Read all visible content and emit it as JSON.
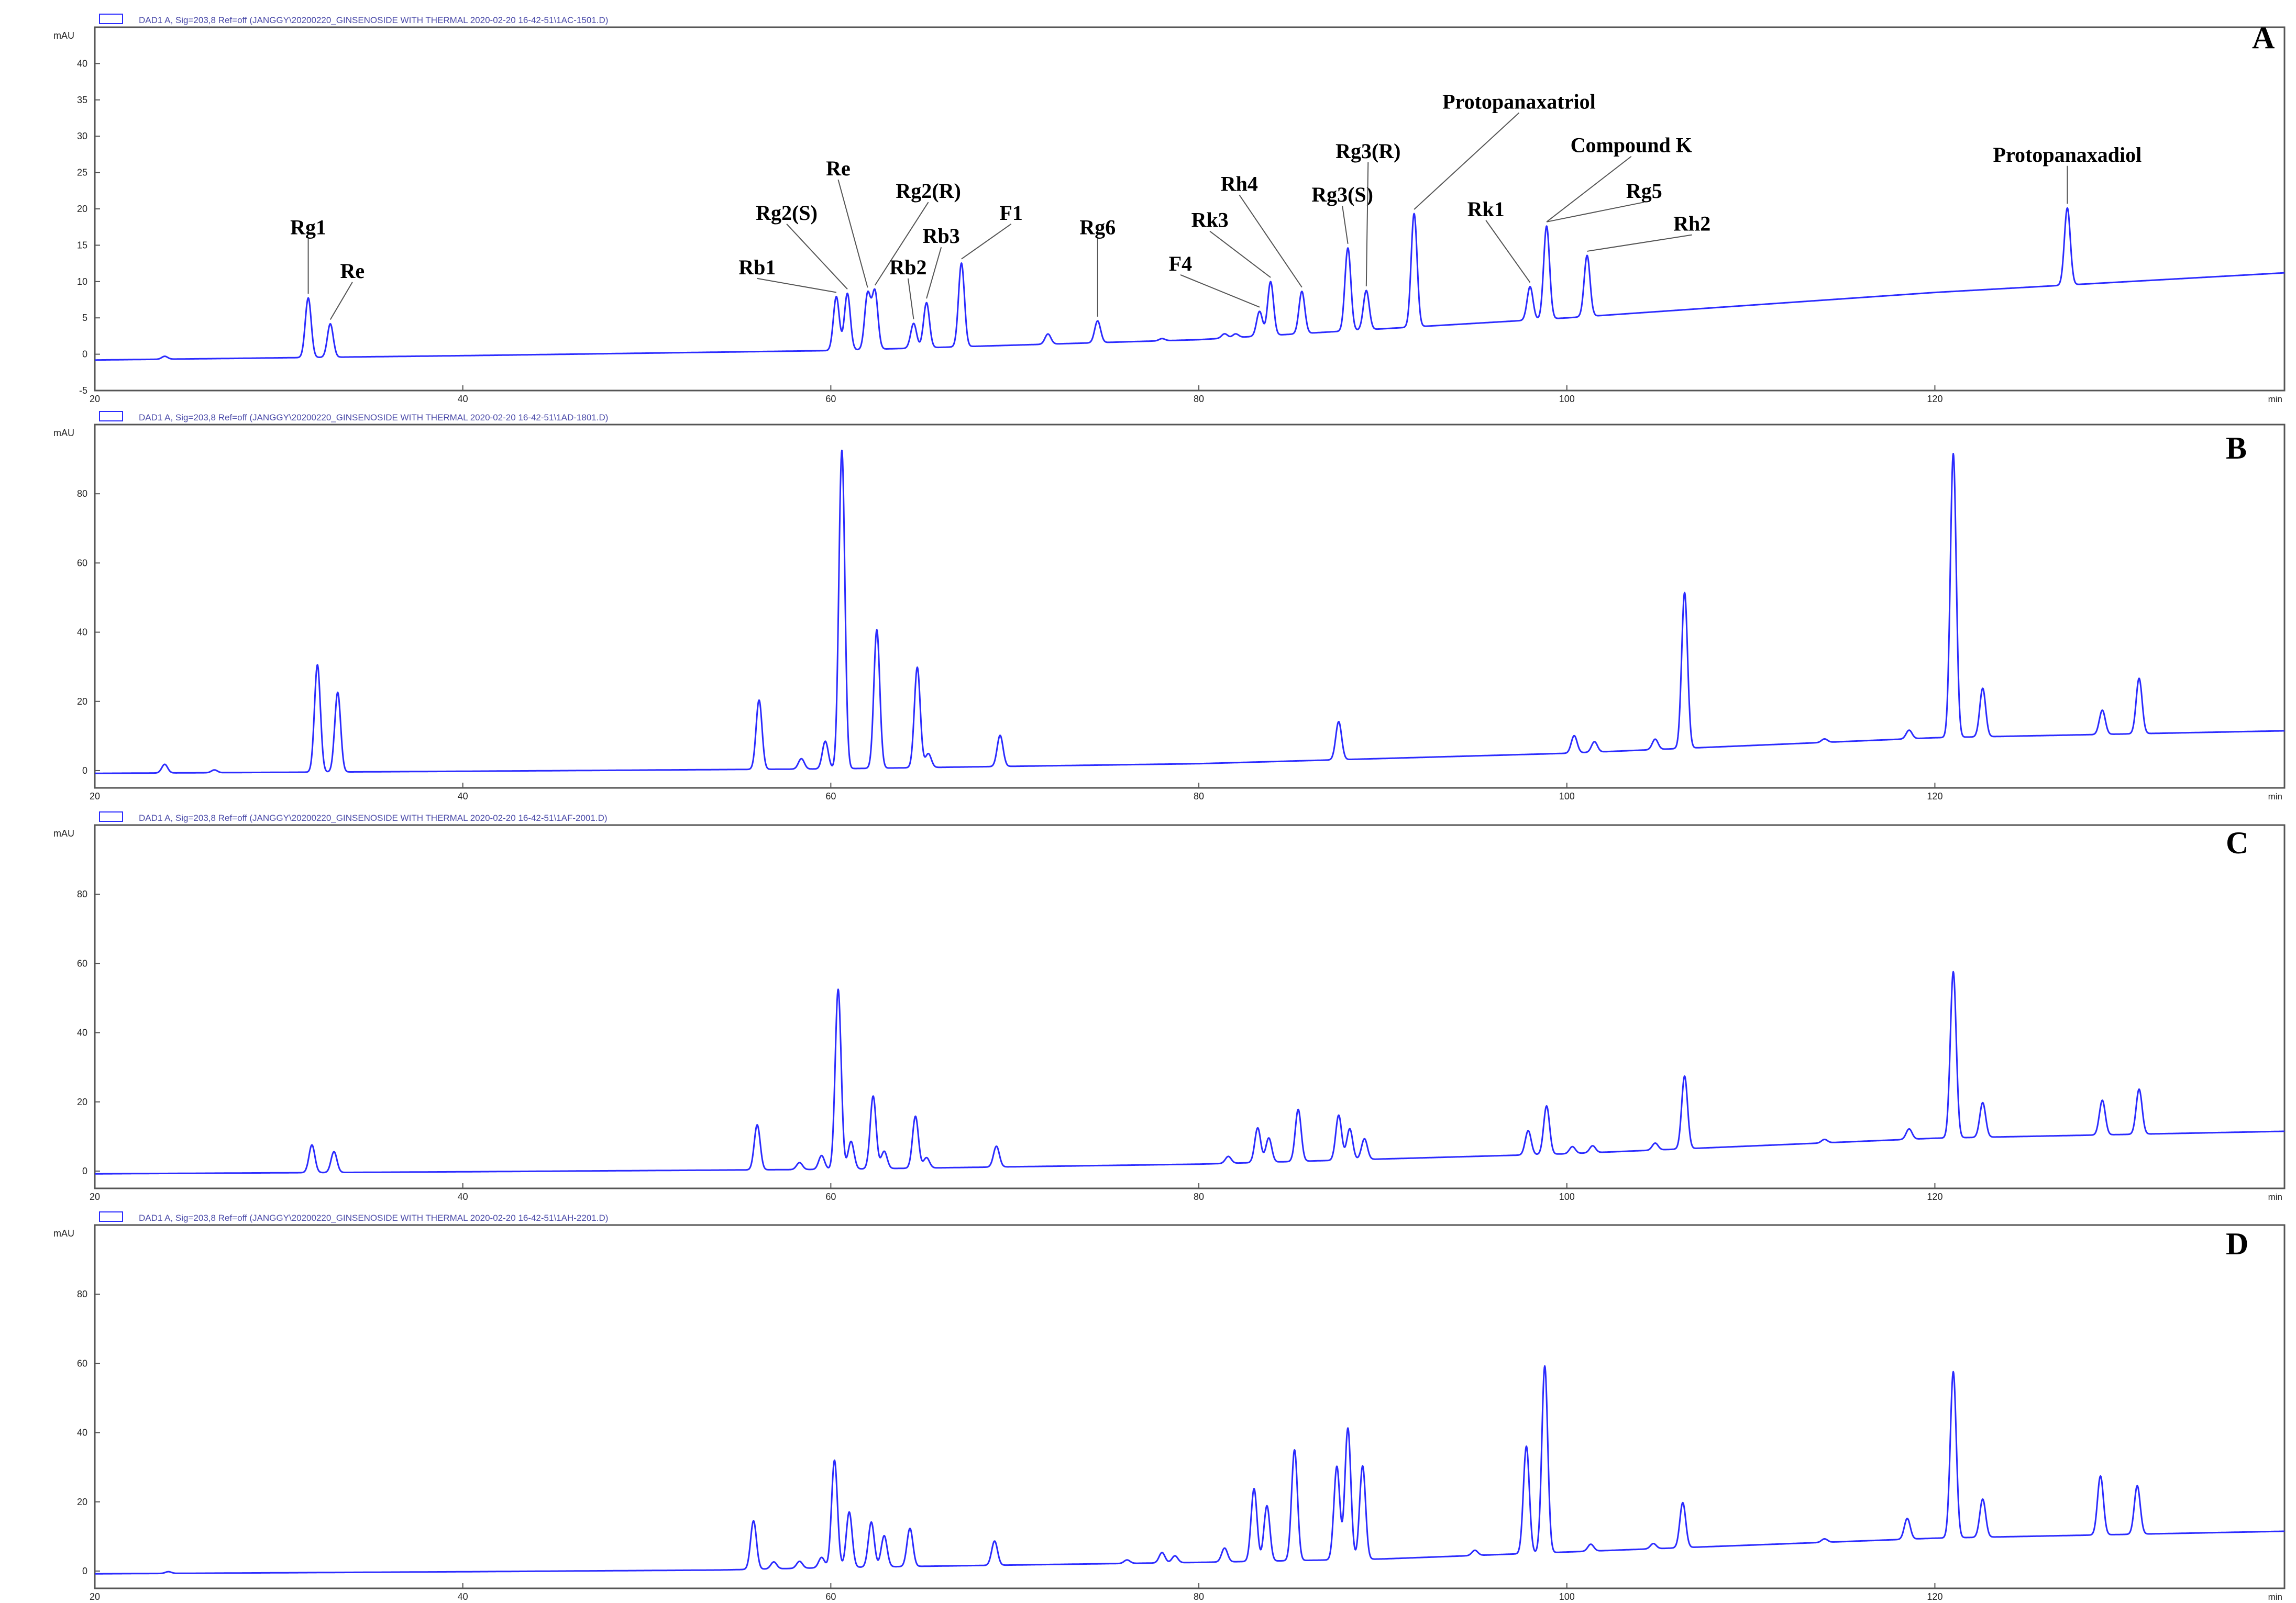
{
  "colors": {
    "trace": "#2b2bff",
    "frame": "#555555",
    "legend_text": "#4a4aa8",
    "label_line": "#555555"
  },
  "x_axis": {
    "min": 20,
    "max": 139,
    "ticks": [
      20,
      40,
      60,
      80,
      100,
      120
    ],
    "unit": "min"
  },
  "chart_data": [
    {
      "type": "line",
      "panel": "A",
      "header": "DAD1 A, Sig=203,8 Ref=off (JANGGY\\20200220_GINSENOSIDE WITH THERMAL 2020-02-20 16-42-51\\1AC-1501.D)",
      "ylabel": "mAU",
      "ylim": [
        -5,
        45
      ],
      "yticks": [
        -5,
        0,
        5,
        10,
        15,
        20,
        25,
        30,
        35,
        40
      ],
      "baseline": [
        [
          20,
          -0.8
        ],
        [
          40,
          -0.2
        ],
        [
          60,
          0.5
        ],
        [
          80,
          2.0
        ],
        [
          90,
          3.5
        ],
        [
          100,
          5.0
        ],
        [
          120,
          8.5
        ],
        [
          139,
          11.2
        ]
      ],
      "peaks": [
        {
          "x": 23.8,
          "h": 0.4
        },
        {
          "x": 31.6,
          "h": 8.2
        },
        {
          "x": 32.8,
          "h": 4.6
        },
        {
          "x": 60.3,
          "h": 7.4
        },
        {
          "x": 60.9,
          "h": 7.8
        },
        {
          "x": 62.0,
          "h": 7.6
        },
        {
          "x": 62.4,
          "h": 7.9
        },
        {
          "x": 64.5,
          "h": 3.4
        },
        {
          "x": 65.2,
          "h": 6.2
        },
        {
          "x": 67.1,
          "h": 11.5
        },
        {
          "x": 71.8,
          "h": 1.4
        },
        {
          "x": 74.5,
          "h": 3.0
        },
        {
          "x": 78.0,
          "h": 0.3
        },
        {
          "x": 81.4,
          "h": 0.6
        },
        {
          "x": 82.0,
          "h": 0.5
        },
        {
          "x": 83.3,
          "h": 3.4
        },
        {
          "x": 83.9,
          "h": 7.4
        },
        {
          "x": 85.6,
          "h": 5.8
        },
        {
          "x": 88.1,
          "h": 11.4
        },
        {
          "x": 89.1,
          "h": 5.4
        },
        {
          "x": 91.7,
          "h": 15.6
        },
        {
          "x": 98.0,
          "h": 4.6
        },
        {
          "x": 98.9,
          "h": 12.8
        },
        {
          "x": 101.1,
          "h": 8.4
        },
        {
          "x": 127.2,
          "h": 10.6
        }
      ],
      "labels": [
        {
          "text": "Rg1",
          "x": 31.6,
          "tx": 31.6,
          "ty": 16.5
        },
        {
          "text": "Re",
          "x": 32.8,
          "tx": 34.0,
          "ty": 10.5
        },
        {
          "text": "Rb1",
          "x": 60.3,
          "tx": 56.0,
          "ty": 11.0
        },
        {
          "text": "Rg2(S)",
          "x": 60.9,
          "tx": 57.6,
          "ty": 18.5
        },
        {
          "text": "Re",
          "x": 62.0,
          "tx": 60.4,
          "ty": 24.6
        },
        {
          "text": "Rg2(R)",
          "x": 62.4,
          "tx": 65.3,
          "ty": 21.5
        },
        {
          "text": "Rb2",
          "x": 64.5,
          "tx": 64.2,
          "ty": 11.0
        },
        {
          "text": "Rb3",
          "x": 65.2,
          "tx": 66.0,
          "ty": 15.3
        },
        {
          "text": "F1",
          "x": 67.1,
          "tx": 69.8,
          "ty": 18.5
        },
        {
          "text": "Rg6",
          "x": 74.5,
          "tx": 74.5,
          "ty": 16.5
        },
        {
          "text": "F4",
          "x": 83.3,
          "tx": 79.0,
          "ty": 11.5
        },
        {
          "text": "Rk3",
          "x": 83.9,
          "tx": 80.6,
          "ty": 17.5
        },
        {
          "text": "Rh4",
          "x": 85.6,
          "tx": 82.2,
          "ty": 22.5
        },
        {
          "text": "Rg3(S)",
          "x": 88.1,
          "tx": 87.8,
          "ty": 21.0
        },
        {
          "text": "Rg3(R)",
          "x": 89.1,
          "tx": 89.2,
          "ty": 27.0
        },
        {
          "text": "Protopanaxatriol",
          "x": 91.7,
          "tx": 97.4,
          "ty": 33.8
        },
        {
          "text": "Compound K",
          "x": 98.9,
          "tx": 103.5,
          "ty": 27.8
        },
        {
          "text": "Rk1",
          "x": 98.0,
          "tx": 95.6,
          "ty": 19.0
        },
        {
          "text": "Rg5",
          "x": 98.9,
          "tx": 104.2,
          "ty": 21.5
        },
        {
          "text": "Rh2",
          "x": 101.1,
          "tx": 106.8,
          "ty": 17.0
        },
        {
          "text": "Protopanaxadiol",
          "x": 127.2,
          "tx": 127.2,
          "ty": 26.5
        }
      ]
    },
    {
      "type": "line",
      "panel": "B",
      "header": "DAD1 A, Sig=203,8 Ref=off (JANGGY\\20200220_GINSENOSIDE WITH THERMAL 2020-02-20 16-42-51\\1AD-1801.D)",
      "ylabel": "mAU",
      "ylim": [
        -5,
        100
      ],
      "yticks": [
        0,
        20,
        40,
        60,
        80
      ],
      "baseline": [
        [
          20,
          -0.8
        ],
        [
          40,
          -0.2
        ],
        [
          60,
          0.5
        ],
        [
          80,
          2.0
        ],
        [
          100,
          5.0
        ],
        [
          120,
          9.5
        ],
        [
          139,
          11.5
        ]
      ],
      "peaks": [
        {
          "x": 23.8,
          "h": 2.5
        },
        {
          "x": 26.5,
          "h": 0.8
        },
        {
          "x": 32.1,
          "h": 31
        },
        {
          "x": 33.2,
          "h": 23
        },
        {
          "x": 56.1,
          "h": 20
        },
        {
          "x": 58.4,
          "h": 3
        },
        {
          "x": 59.7,
          "h": 8
        },
        {
          "x": 60.6,
          "h": 92
        },
        {
          "x": 62.5,
          "h": 40
        },
        {
          "x": 64.7,
          "h": 29
        },
        {
          "x": 65.3,
          "h": 4
        },
        {
          "x": 69.2,
          "h": 9
        },
        {
          "x": 87.6,
          "h": 11
        },
        {
          "x": 100.4,
          "h": 5
        },
        {
          "x": 101.5,
          "h": 3
        },
        {
          "x": 104.8,
          "h": 3
        },
        {
          "x": 106.4,
          "h": 45
        },
        {
          "x": 114.0,
          "h": 1
        },
        {
          "x": 118.6,
          "h": 2.5
        },
        {
          "x": 121.0,
          "h": 82
        },
        {
          "x": 122.6,
          "h": 14
        },
        {
          "x": 129.1,
          "h": 7
        },
        {
          "x": 131.1,
          "h": 16
        }
      ]
    },
    {
      "type": "line",
      "panel": "C",
      "header": "DAD1 A, Sig=203,8 Ref=off (JANGGY\\20200220_GINSENOSIDE WITH THERMAL 2020-02-20 16-42-51\\1AF-2001.D)",
      "ylabel": "mAU",
      "ylim": [
        -5,
        100
      ],
      "yticks": [
        0,
        20,
        40,
        60,
        80
      ],
      "baseline": [
        [
          20,
          -0.8
        ],
        [
          40,
          -0.2
        ],
        [
          60,
          0.5
        ],
        [
          80,
          2.0
        ],
        [
          100,
          5.0
        ],
        [
          120,
          9.5
        ],
        [
          139,
          11.5
        ]
      ],
      "peaks": [
        {
          "x": 31.8,
          "h": 8
        },
        {
          "x": 33.0,
          "h": 6
        },
        {
          "x": 56.0,
          "h": 13
        },
        {
          "x": 58.3,
          "h": 2
        },
        {
          "x": 59.5,
          "h": 4
        },
        {
          "x": 60.4,
          "h": 52
        },
        {
          "x": 61.1,
          "h": 8
        },
        {
          "x": 62.3,
          "h": 21
        },
        {
          "x": 62.9,
          "h": 5
        },
        {
          "x": 64.6,
          "h": 15
        },
        {
          "x": 65.2,
          "h": 3
        },
        {
          "x": 69.0,
          "h": 6
        },
        {
          "x": 81.6,
          "h": 2
        },
        {
          "x": 83.2,
          "h": 10
        },
        {
          "x": 83.8,
          "h": 7
        },
        {
          "x": 85.4,
          "h": 15
        },
        {
          "x": 87.6,
          "h": 13
        },
        {
          "x": 88.2,
          "h": 9
        },
        {
          "x": 89.0,
          "h": 6
        },
        {
          "x": 97.9,
          "h": 7
        },
        {
          "x": 98.9,
          "h": 14
        },
        {
          "x": 100.3,
          "h": 2
        },
        {
          "x": 101.4,
          "h": 2
        },
        {
          "x": 104.8,
          "h": 2
        },
        {
          "x": 106.4,
          "h": 21
        },
        {
          "x": 114.0,
          "h": 1
        },
        {
          "x": 118.6,
          "h": 3
        },
        {
          "x": 121.0,
          "h": 48
        },
        {
          "x": 122.6,
          "h": 10
        },
        {
          "x": 129.1,
          "h": 10
        },
        {
          "x": 131.1,
          "h": 13
        }
      ]
    },
    {
      "type": "line",
      "panel": "D",
      "header": "DAD1 A, Sig=203,8 Ref=off (JANGGY\\20200220_GINSENOSIDE WITH THERMAL 2020-02-20 16-42-51\\1AH-2201.D)",
      "ylabel": "mAU",
      "ylim": [
        -5,
        100
      ],
      "yticks": [
        0,
        20,
        40,
        60,
        80
      ],
      "baseline": [
        [
          20,
          -0.8
        ],
        [
          40,
          -0.2
        ],
        [
          54,
          0.3
        ],
        [
          60,
          1.0
        ],
        [
          80,
          2.5
        ],
        [
          90,
          3.5
        ],
        [
          100,
          5.5
        ],
        [
          120,
          9.5
        ],
        [
          139,
          11.5
        ]
      ],
      "peaks": [
        {
          "x": 24.0,
          "h": 0.5
        },
        {
          "x": 55.8,
          "h": 14
        },
        {
          "x": 56.9,
          "h": 2
        },
        {
          "x": 58.3,
          "h": 2
        },
        {
          "x": 59.5,
          "h": 3
        },
        {
          "x": 60.2,
          "h": 31
        },
        {
          "x": 61.0,
          "h": 16
        },
        {
          "x": 62.2,
          "h": 13
        },
        {
          "x": 62.9,
          "h": 9
        },
        {
          "x": 64.3,
          "h": 11
        },
        {
          "x": 68.9,
          "h": 7
        },
        {
          "x": 76.1,
          "h": 1
        },
        {
          "x": 78.0,
          "h": 3
        },
        {
          "x": 78.7,
          "h": 2
        },
        {
          "x": 81.4,
          "h": 4
        },
        {
          "x": 83.0,
          "h": 21
        },
        {
          "x": 83.7,
          "h": 16
        },
        {
          "x": 85.2,
          "h": 32
        },
        {
          "x": 87.5,
          "h": 27
        },
        {
          "x": 88.1,
          "h": 38
        },
        {
          "x": 88.9,
          "h": 27
        },
        {
          "x": 95.0,
          "h": 1.5
        },
        {
          "x": 97.8,
          "h": 31
        },
        {
          "x": 98.8,
          "h": 54
        },
        {
          "x": 101.3,
          "h": 2
        },
        {
          "x": 104.7,
          "h": 1.5
        },
        {
          "x": 106.3,
          "h": 13
        },
        {
          "x": 114.0,
          "h": 1
        },
        {
          "x": 118.5,
          "h": 6
        },
        {
          "x": 121.0,
          "h": 48
        },
        {
          "x": 122.6,
          "h": 11
        },
        {
          "x": 129.0,
          "h": 17
        },
        {
          "x": 131.0,
          "h": 14
        }
      ]
    }
  ]
}
